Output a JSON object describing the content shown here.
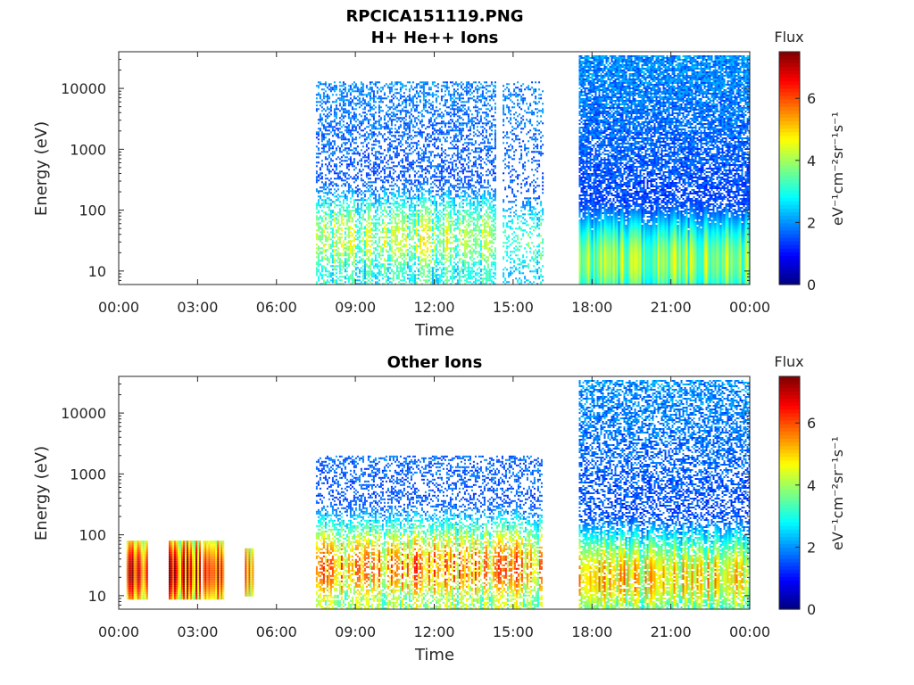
{
  "figure": {
    "title": "RPCICA151119.PNG"
  },
  "colormap": "jet",
  "chart_data": [
    {
      "type": "heatmap",
      "title": "H+ He++ Ions",
      "xlabel": "Time",
      "ylabel": "Energy (eV)",
      "x_ticks": [
        "00:00",
        "03:00",
        "06:00",
        "09:00",
        "12:00",
        "15:00",
        "18:00",
        "21:00",
        "00:00"
      ],
      "x_range_hours": [
        0,
        24
      ],
      "y_scale": "log",
      "y_range": [
        6,
        40000
      ],
      "y_ticks": [
        {
          "value": 10,
          "label": "10"
        },
        {
          "value": 100,
          "label": "100"
        },
        {
          "value": 1000,
          "label": "1000"
        },
        {
          "value": 10000,
          "label": "10000"
        }
      ],
      "colorbar": {
        "title": "Flux",
        "unit": "eV⁻¹cm⁻²sr⁻¹s⁻¹",
        "range": [
          0,
          7.5
        ],
        "ticks": [
          0,
          2,
          4,
          6
        ]
      },
      "regions": [
        {
          "t_start": 7.5,
          "t_end": 14.3,
          "e_min": 6,
          "e_max": 13000,
          "peak_energy": 35,
          "peak_flux": 4.2,
          "density": 0.55
        },
        {
          "t_start": 14.6,
          "t_end": 16.1,
          "e_min": 6,
          "e_max": 13000,
          "peak_energy": 30,
          "peak_flux": 3.6,
          "density": 0.3
        },
        {
          "t_start": 17.5,
          "t_end": 24.0,
          "e_min": 6,
          "e_max": 35000,
          "peak_energy": 15,
          "peak_flux": 4.0,
          "density": 1.0
        }
      ]
    },
    {
      "type": "heatmap",
      "title": "Other Ions",
      "xlabel": "Time",
      "ylabel": "Energy (eV)",
      "x_ticks": [
        "00:00",
        "03:00",
        "06:00",
        "09:00",
        "12:00",
        "15:00",
        "18:00",
        "21:00",
        "00:00"
      ],
      "x_range_hours": [
        0,
        24
      ],
      "y_scale": "log",
      "y_range": [
        6,
        40000
      ],
      "y_ticks": [
        {
          "value": 10,
          "label": "10"
        },
        {
          "value": 100,
          "label": "100"
        },
        {
          "value": 1000,
          "label": "1000"
        },
        {
          "value": 10000,
          "label": "10000"
        }
      ],
      "colorbar": {
        "title": "Flux",
        "unit": "eV⁻¹cm⁻²sr⁻¹s⁻¹",
        "range": [
          0,
          7.5
        ],
        "ticks": [
          0,
          2,
          4,
          6
        ]
      },
      "regions": [
        {
          "t_start": 0.3,
          "t_end": 1.1,
          "e_min": 9,
          "e_max": 80,
          "peak_energy": 25,
          "peak_flux": 6.8,
          "density": 1.0
        },
        {
          "t_start": 1.9,
          "t_end": 3.1,
          "e_min": 9,
          "e_max": 80,
          "peak_energy": 25,
          "peak_flux": 6.5,
          "density": 1.0
        },
        {
          "t_start": 3.2,
          "t_end": 4.0,
          "e_min": 9,
          "e_max": 80,
          "peak_energy": 25,
          "peak_flux": 6.4,
          "density": 1.0
        },
        {
          "t_start": 4.8,
          "t_end": 5.1,
          "e_min": 10,
          "e_max": 60,
          "peak_energy": 25,
          "peak_flux": 6.0,
          "density": 1.0
        },
        {
          "t_start": 7.5,
          "t_end": 16.1,
          "e_min": 6,
          "e_max": 2000,
          "peak_energy": 30,
          "peak_flux": 5.5,
          "density": 0.6
        },
        {
          "t_start": 17.5,
          "t_end": 24.0,
          "e_min": 6,
          "e_max": 35000,
          "peak_energy": 20,
          "peak_flux": 5.0,
          "density": 0.8
        }
      ]
    }
  ]
}
